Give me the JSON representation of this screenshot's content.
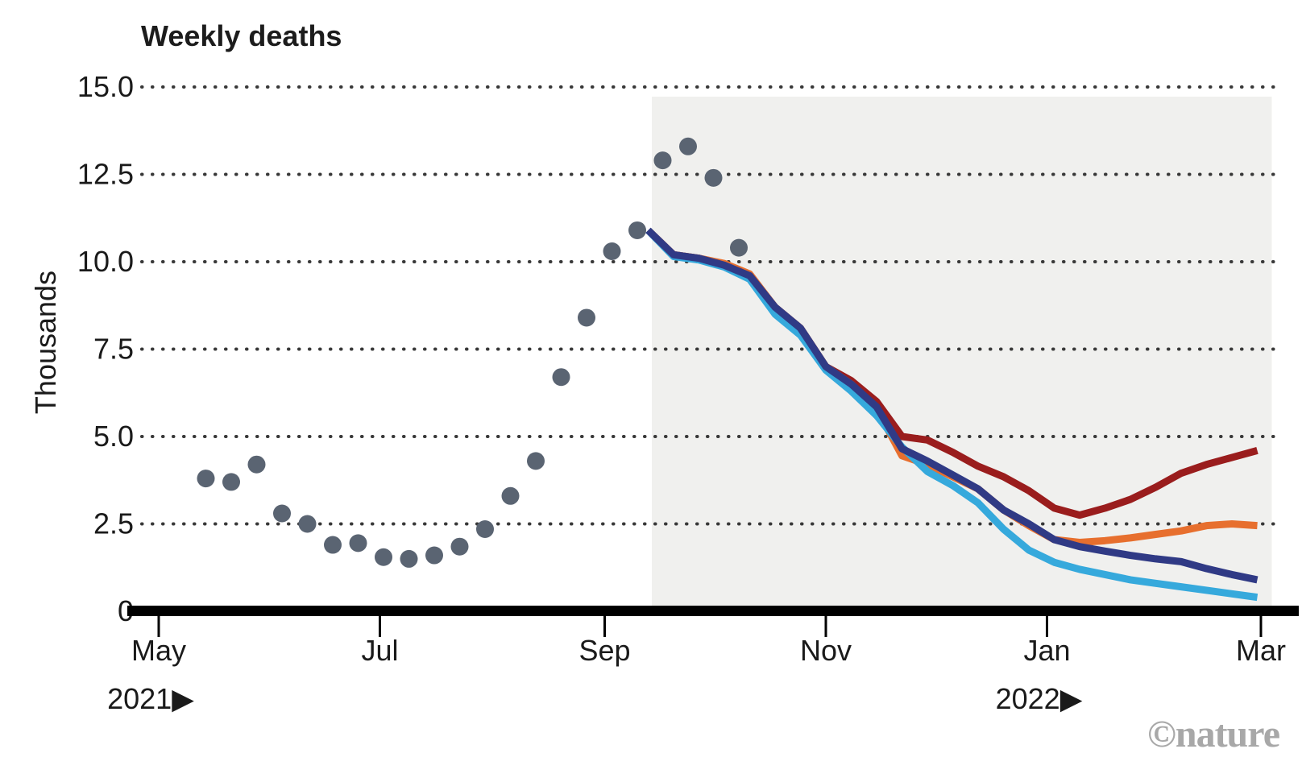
{
  "title": "Weekly deaths",
  "y_axis_label": "Thousands",
  "watermark": "©nature",
  "y_axis": {
    "label": "Thousands",
    "ticks": [
      {
        "label": "15.0",
        "value": 15
      },
      {
        "label": "12.5",
        "value": 12.5
      },
      {
        "label": "10.0",
        "value": 10
      },
      {
        "label": "7.5",
        "value": 7.5
      },
      {
        "label": "5.0",
        "value": 5
      },
      {
        "label": "2.5",
        "value": 2.5
      },
      {
        "label": "0",
        "value": 0
      }
    ]
  },
  "x_axis": {
    "ticks": [
      {
        "label": "May",
        "date": "2021-05-01"
      },
      {
        "label": "Jul",
        "date": "2021-07-01"
      },
      {
        "label": "Sep",
        "date": "2021-09-01"
      },
      {
        "label": "Nov",
        "date": "2021-11-01"
      },
      {
        "label": "Jan",
        "date": "2022-01-01"
      },
      {
        "label": "Mar",
        "date": "2022-03-01"
      }
    ],
    "year_markers": [
      {
        "label": "2021▶",
        "date": "2021-05-01"
      },
      {
        "label": "2022▶",
        "date": "2022-01-01"
      }
    ]
  },
  "chart_data": {
    "type": "line",
    "title": "Weekly deaths",
    "ylabel": "Thousands",
    "ylim": [
      0,
      15
    ],
    "unit": "thousands of deaths per week",
    "grid": "dotted horizontal",
    "legend": "none",
    "gridline_color": "#383838",
    "axis_color": "#000000",
    "text_color": "#1a1a1a",
    "forecast_region": {
      "start": "2021-09-14",
      "end": "2022-03-04",
      "fill": "#f0f0ee"
    },
    "observed": {
      "style": "scatter-dots",
      "color": "#5a6472",
      "dates": [
        "2021-05-14",
        "2021-05-21",
        "2021-05-28",
        "2021-06-04",
        "2021-06-11",
        "2021-06-18",
        "2021-06-25",
        "2021-07-02",
        "2021-07-09",
        "2021-07-16",
        "2021-07-23",
        "2021-07-30",
        "2021-08-06",
        "2021-08-13",
        "2021-08-20",
        "2021-08-27",
        "2021-09-03",
        "2021-09-10",
        "2021-09-17",
        "2021-09-24",
        "2021-10-01",
        "2021-10-08"
      ],
      "values": [
        3.8,
        3.7,
        4.2,
        2.8,
        2.5,
        1.9,
        1.95,
        1.55,
        1.5,
        1.6,
        1.85,
        2.35,
        3.3,
        4.3,
        6.7,
        8.4,
        10.3,
        10.9,
        12.9,
        13.3,
        12.4,
        10.4
      ]
    },
    "projection_dates": [
      "2021-09-13",
      "2021-09-20",
      "2021-09-27",
      "2021-10-04",
      "2021-10-11",
      "2021-10-18",
      "2021-10-25",
      "2021-11-01",
      "2021-11-08",
      "2021-11-15",
      "2021-11-22",
      "2021-11-29",
      "2021-12-06",
      "2021-12-13",
      "2021-12-20",
      "2021-12-27",
      "2022-01-03",
      "2022-01-10",
      "2022-01-17",
      "2022-01-24",
      "2022-01-31",
      "2022-02-07",
      "2022-02-14",
      "2022-02-21",
      "2022-02-28"
    ],
    "series": [
      {
        "name": "projection-dark-red",
        "color": "#9a1d1d",
        "values": [
          10.9,
          10.2,
          10.1,
          9.9,
          9.6,
          8.7,
          8.1,
          7.0,
          6.6,
          6.0,
          5.0,
          4.9,
          4.55,
          4.15,
          3.85,
          3.45,
          2.95,
          2.75,
          2.95,
          3.2,
          3.55,
          3.95,
          4.2,
          4.4,
          4.6
        ]
      },
      {
        "name": "projection-orange",
        "color": "#e76f2e",
        "values": [
          10.9,
          10.2,
          10.1,
          9.95,
          9.65,
          8.7,
          8.1,
          7.0,
          6.5,
          5.8,
          4.45,
          4.2,
          3.85,
          3.5,
          2.9,
          2.45,
          2.05,
          1.97,
          2.02,
          2.1,
          2.2,
          2.3,
          2.45,
          2.5,
          2.45
        ]
      },
      {
        "name": "projection-light-blue",
        "color": "#36a9dc",
        "values": [
          10.9,
          10.15,
          10.05,
          9.85,
          9.5,
          8.5,
          7.9,
          6.9,
          6.3,
          5.6,
          4.7,
          4.0,
          3.6,
          3.1,
          2.35,
          1.75,
          1.4,
          1.2,
          1.05,
          0.9,
          0.8,
          0.7,
          0.6,
          0.5,
          0.4
        ]
      },
      {
        "name": "projection-navy",
        "color": "#303a85",
        "values": [
          10.9,
          10.2,
          10.1,
          9.9,
          9.6,
          8.7,
          8.1,
          7.0,
          6.5,
          5.85,
          4.65,
          4.3,
          3.9,
          3.5,
          2.9,
          2.5,
          2.05,
          1.85,
          1.72,
          1.6,
          1.5,
          1.42,
          1.22,
          1.05,
          0.9
        ]
      }
    ]
  }
}
